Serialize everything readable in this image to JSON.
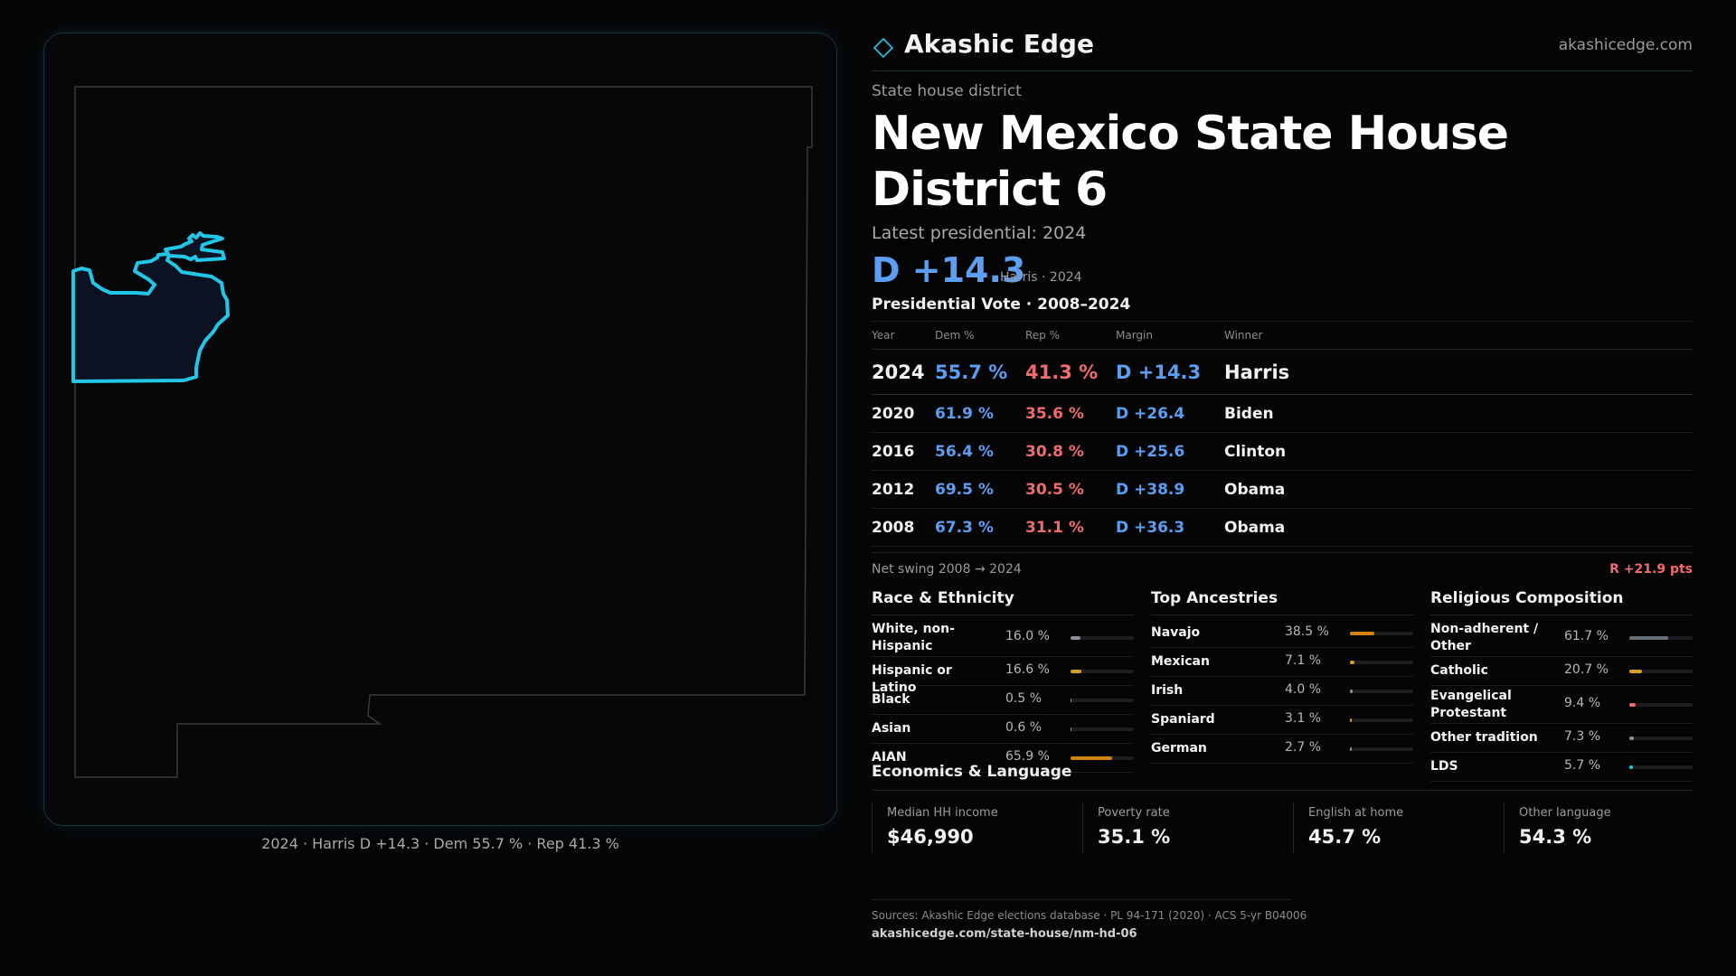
{
  "map": {
    "caption": "2024 · Harris D +14.3 · Dem 55.7 % · Rep 41.3 %",
    "state_outline_color": "#3a3a3e",
    "district_stroke_color": "#22c7e8",
    "district_fill_color": "#0c1222"
  },
  "brand": {
    "name": "Akashic Edge",
    "url": "akashicedge.com",
    "icon": "diamond-icon"
  },
  "header": {
    "kicker": "State house district",
    "title": "New Mexico State House District 6",
    "latest_label": "Latest presidential: 2024",
    "margin": "D +14.3",
    "margin_sub": "Harris · 2024",
    "vote_heading": "Presidential Vote · 2008–2024"
  },
  "votes": {
    "columns": [
      "Year",
      "Dem %",
      "Rep %",
      "Margin",
      "Winner"
    ],
    "rows": [
      {
        "year": "2024",
        "dem": "55.7 %",
        "rep": "41.3 %",
        "margin": "D +14.3",
        "winner": "Harris"
      },
      {
        "year": "2020",
        "dem": "61.9 %",
        "rep": "35.6 %",
        "margin": "D +26.4",
        "winner": "Biden"
      },
      {
        "year": "2016",
        "dem": "56.4 %",
        "rep": "30.8 %",
        "margin": "D +25.6",
        "winner": "Clinton"
      },
      {
        "year": "2012",
        "dem": "69.5 %",
        "rep": "30.5 %",
        "margin": "D +38.9",
        "winner": "Obama"
      },
      {
        "year": "2008",
        "dem": "67.3 %",
        "rep": "31.1 %",
        "margin": "D +36.3",
        "winner": "Obama"
      }
    ]
  },
  "swing": {
    "label": "Net swing 2008 → 2024",
    "value": "R +21.9 pts"
  },
  "race": {
    "title": "Race & Ethnicity",
    "items": [
      {
        "label": "White, non-Hispanic",
        "value": "16.0 %",
        "pct": 16.0,
        "color": "#8a8f9a"
      },
      {
        "label": "Hispanic or Latino",
        "value": "16.6 %",
        "pct": 16.6,
        "color": "#d4a020"
      },
      {
        "label": "Black",
        "value": "0.5 %",
        "pct": 0.5,
        "color": "#8a8f9a"
      },
      {
        "label": "Asian",
        "value": "0.6 %",
        "pct": 0.6,
        "color": "#8a8f9a"
      },
      {
        "label": "AIAN",
        "value": "65.9 %",
        "pct": 65.9,
        "color": "#d4820e"
      }
    ]
  },
  "ancestry": {
    "title": "Top Ancestries",
    "items": [
      {
        "label": "Navajo",
        "value": "38.5 %",
        "pct": 38.5,
        "color": "#d4820e"
      },
      {
        "label": "Mexican",
        "value": "7.1 %",
        "pct": 7.1,
        "color": "#d4a020"
      },
      {
        "label": "Irish",
        "value": "4.0 %",
        "pct": 4.0,
        "color": "#8a8f9a"
      },
      {
        "label": "Spaniard",
        "value": "3.1 %",
        "pct": 3.1,
        "color": "#d4a020"
      },
      {
        "label": "German",
        "value": "2.7 %",
        "pct": 2.7,
        "color": "#8a8f9a"
      }
    ]
  },
  "religion": {
    "title": "Religious Composition",
    "items": [
      {
        "label": "Non-adherent / Other",
        "value": "61.7 %",
        "pct": 61.7,
        "color": "#6a6e78"
      },
      {
        "label": "Catholic",
        "value": "20.7 %",
        "pct": 20.7,
        "color": "#d4a020"
      },
      {
        "label": "Evangelical Protestant",
        "value": "9.4 %",
        "pct": 9.4,
        "color": "#f06b6b"
      },
      {
        "label": "Other tradition",
        "value": "7.3 %",
        "pct": 7.3,
        "color": "#8a8f9a"
      },
      {
        "label": "LDS",
        "value": "5.7 %",
        "pct": 5.7,
        "color": "#22c7e8"
      }
    ]
  },
  "economics": {
    "title": "Economics & Language",
    "cells": [
      {
        "label": "Median HH income",
        "value": "$46,990"
      },
      {
        "label": "Poverty rate",
        "value": "35.1 %"
      },
      {
        "label": "English at home",
        "value": "45.7 %"
      },
      {
        "label": "Other language",
        "value": "54.3 %"
      }
    ]
  },
  "footer": {
    "sources": "Sources: Akashic Edge elections database · PL 94-171 (2020) · ACS 5-yr B04006",
    "url": "akashicedge.com/state-house/nm-hd-06"
  }
}
